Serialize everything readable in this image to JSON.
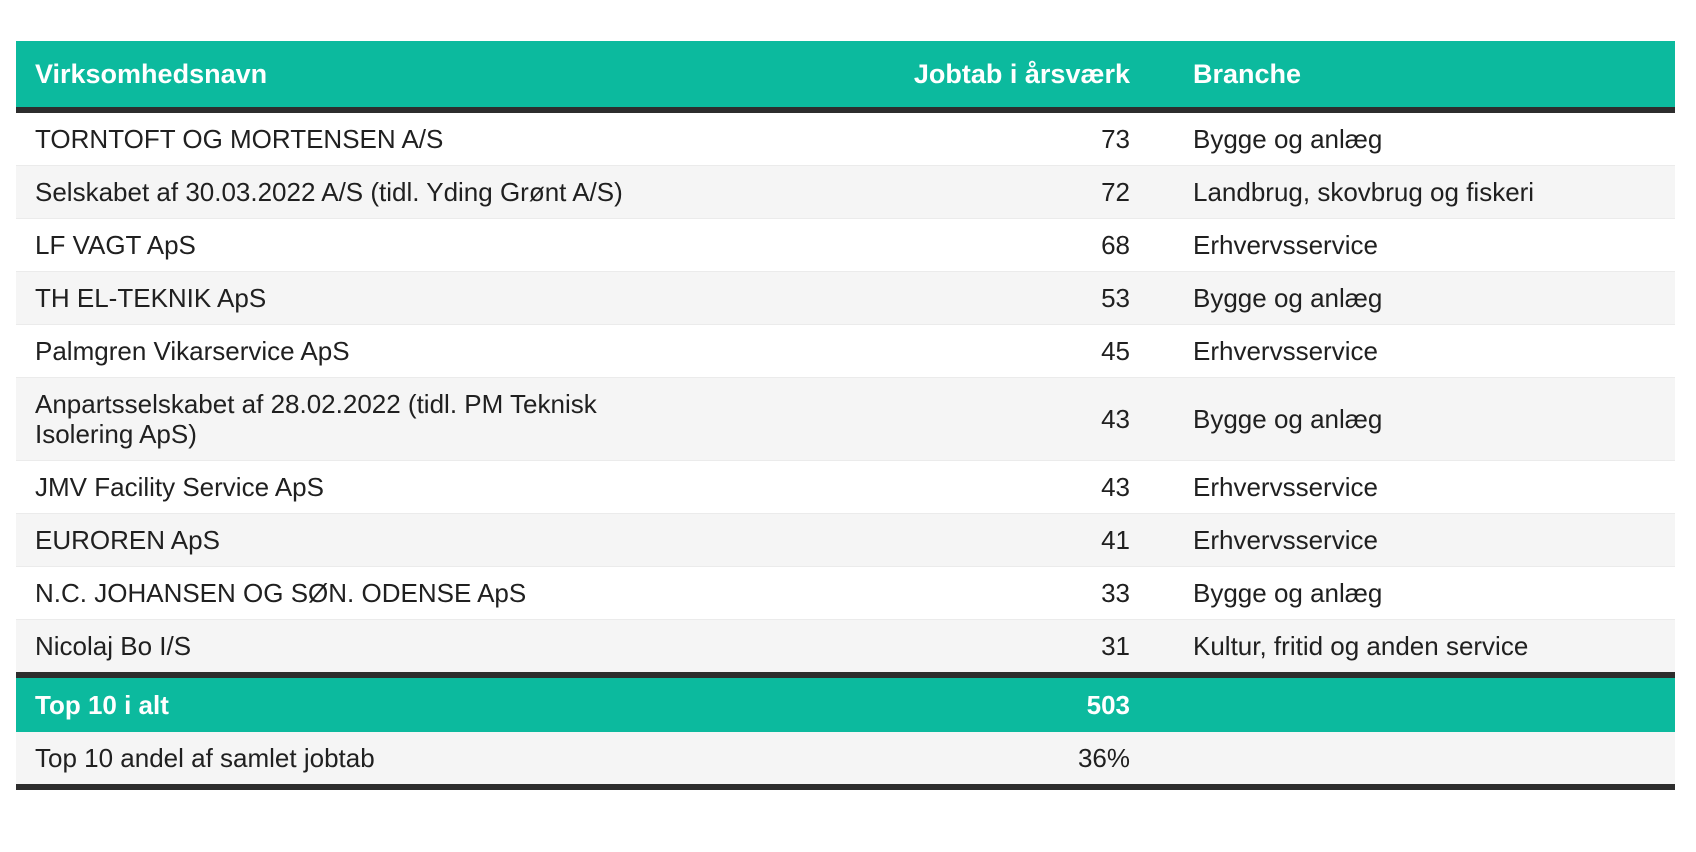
{
  "chart_data": {
    "type": "table",
    "columns": [
      "Virksomhedsnavn",
      "Jobtab i årsværk",
      "Branche"
    ],
    "rows": [
      {
        "name": "TORNTOFT OG MORTENSEN A/S",
        "jobtab": "73",
        "branche": "Bygge og anlæg"
      },
      {
        "name": "Selskabet af 30.03.2022 A/S (tidl. Yding Grønt A/S)",
        "jobtab": "72",
        "branche": "Landbrug, skovbrug og fiskeri"
      },
      {
        "name": "LF VAGT ApS",
        "jobtab": "68",
        "branche": "Erhvervsservice"
      },
      {
        "name": "TH EL-TEKNIK ApS",
        "jobtab": "53",
        "branche": "Bygge og anlæg"
      },
      {
        "name": "Palmgren Vikarservice ApS",
        "jobtab": "45",
        "branche": "Erhvervsservice"
      },
      {
        "name": "Anpartsselskabet af 28.02.2022 (tidl. PM Teknisk Isolering ApS)",
        "jobtab": "43",
        "branche": "Bygge og anlæg"
      },
      {
        "name": "JMV Facility Service ApS",
        "jobtab": "43",
        "branche": "Erhvervsservice"
      },
      {
        "name": "EUROREN ApS",
        "jobtab": "41",
        "branche": "Erhvervsservice"
      },
      {
        "name": "N.C. JOHANSEN OG SØN. ODENSE ApS",
        "jobtab": "33",
        "branche": "Bygge og anlæg"
      },
      {
        "name": "Nicolaj Bo I/S",
        "jobtab": "31",
        "branche": "Kultur, fritid og anden service"
      }
    ],
    "total_row": {
      "label": "Top 10 i alt",
      "value": "503",
      "branche": ""
    },
    "share_row": {
      "label": "Top 10 andel af samlet jobtab",
      "value": "36%",
      "branche": ""
    },
    "layout_hints": "header and total row teal with white bold text; body rows alternate white / light grey; numeric column right-aligned; thick dark rules under header, above total row and at table bottom"
  },
  "colors": {
    "header_bg": "#0cba9e",
    "header_text": "#ffffff",
    "row_alt_bg": "#f5f5f5",
    "row_bg": "#ffffff",
    "dark_rule": "#2d2d2d",
    "row_divider": "#ebebeb",
    "body_text": "#202020"
  }
}
